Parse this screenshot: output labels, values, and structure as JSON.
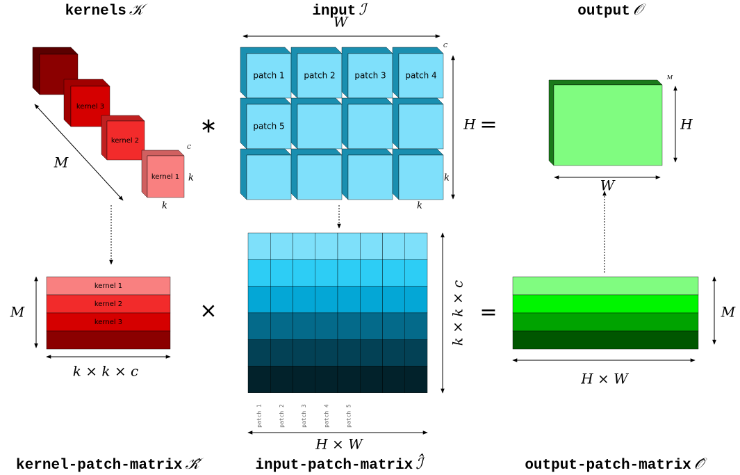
{
  "kernels": {
    "title": "kernels",
    "symbol": "𝒦",
    "labels": [
      "kernel 3",
      "kernel 2",
      "kernel 1"
    ],
    "depth": "M",
    "k_right": "k",
    "k_bottom": "k",
    "channels": "C"
  },
  "operator_conv": "∗",
  "input": {
    "title": "input",
    "symbol": "ℐ",
    "width": "W",
    "height": "H",
    "equals": "=",
    "patches": [
      "patch 1",
      "patch 2",
      "patch 3",
      "patch 4",
      "patch 5"
    ],
    "k_right": "k",
    "k_bottom": "k",
    "channels": "C"
  },
  "output": {
    "title": "output",
    "symbol": "𝒪",
    "height": "H",
    "width": "W",
    "channels": "M"
  },
  "kernel_patch_matrix": {
    "title": "kernel-patch-matrix",
    "symbol": "𝒦̂",
    "rows": [
      "kernel 1",
      "kernel 2",
      "kernel 3"
    ],
    "height": "M",
    "width": "k × k × c"
  },
  "operator_times": "×",
  "input_patch_matrix": {
    "title": "input-patch-matrix",
    "symbol": "ℐ̂",
    "height": "k × k × c",
    "width": "H × W",
    "columns": [
      "patch 1",
      "patch 2",
      "patch 3",
      "patch 4",
      "patch 5"
    ]
  },
  "operator_equals": "=",
  "output_patch_matrix": {
    "title": "output-patch-matrix",
    "symbol": "𝒪̂",
    "height": "M",
    "width": "H × W"
  }
}
